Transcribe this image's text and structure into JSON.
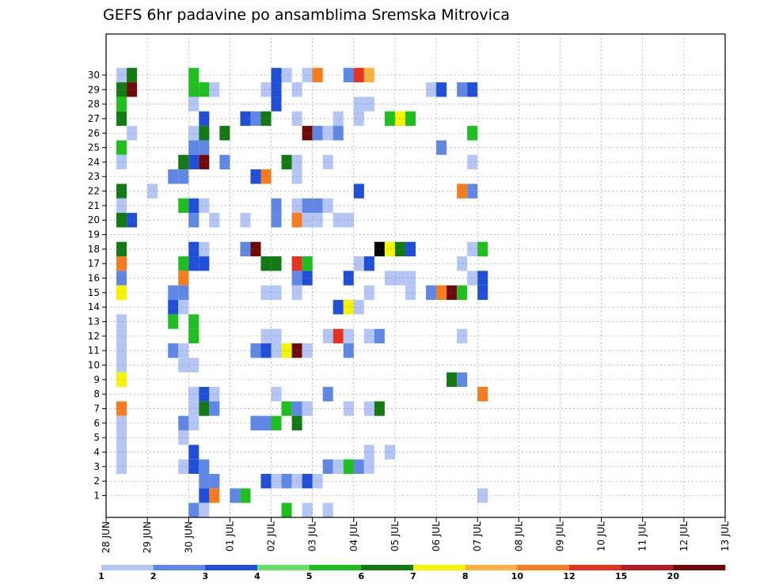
{
  "chart_data": {
    "type": "heatmap",
    "title": "GEFS 6hr padavine po ansamblima Sremska Mitrovica",
    "xlabel": "",
    "ylabel": "",
    "x_labels": [
      "28 JUN",
      "29 JUN",
      "30 JUN",
      "01 JUL",
      "02 JUL",
      "03 JUL",
      "04 JUL",
      "05 JUL",
      "06 JUL",
      "07 JUL",
      "08 JUL",
      "09 JUL",
      "10 JUL",
      "11 JUL",
      "12 JUL",
      "13 JUL"
    ],
    "y_labels": [
      "1",
      "2",
      "3",
      "4",
      "5",
      "6",
      "7",
      "8",
      "9",
      "10",
      "11",
      "12",
      "13",
      "14",
      "15",
      "16",
      "17",
      "18",
      "19",
      "20",
      "21",
      "22",
      "23",
      "24",
      "25",
      "26",
      "27",
      "28",
      "29",
      "30"
    ],
    "grid": true,
    "x_step_hours": 6,
    "levels": [
      1,
      2,
      3,
      4,
      5,
      6,
      7,
      8,
      10,
      12,
      15,
      20
    ],
    "colorbar_labels": [
      "1",
      "2",
      "3",
      "4",
      "5",
      "6",
      "7",
      "8",
      "10",
      "12",
      "15",
      "20"
    ],
    "colors": [
      "#b3c6f5",
      "#5f87e6",
      "#1f4fd9",
      "#66e066",
      "#1fbf1f",
      "#127a12",
      "#f5f500",
      "#fbb040",
      "#f57c1f",
      "#e6321f",
      "#b41e1e",
      "#6e0a0a"
    ],
    "cells": [
      [
        30,
        1,
        1
      ],
      [
        30,
        2,
        6
      ],
      [
        30,
        8,
        5
      ],
      [
        30,
        16,
        3
      ],
      [
        30,
        17,
        1
      ],
      [
        30,
        19,
        1
      ],
      [
        30,
        20,
        9
      ],
      [
        30,
        23,
        2
      ],
      [
        30,
        24,
        10
      ],
      [
        30,
        25,
        8
      ],
      [
        29,
        1,
        6
      ],
      [
        29,
        2,
        12
      ],
      [
        29,
        8,
        5
      ],
      [
        29,
        9,
        5
      ],
      [
        29,
        10,
        1
      ],
      [
        29,
        15,
        1
      ],
      [
        29,
        16,
        3
      ],
      [
        29,
        18,
        1
      ],
      [
        29,
        31,
        1
      ],
      [
        29,
        32,
        3
      ],
      [
        29,
        34,
        2
      ],
      [
        29,
        35,
        3
      ],
      [
        28,
        1,
        5
      ],
      [
        28,
        8,
        1
      ],
      [
        28,
        16,
        3
      ],
      [
        28,
        24,
        1
      ],
      [
        28,
        25,
        1
      ],
      [
        27,
        1,
        6
      ],
      [
        27,
        9,
        3
      ],
      [
        27,
        13,
        3
      ],
      [
        27,
        14,
        2
      ],
      [
        27,
        15,
        6
      ],
      [
        27,
        18,
        1
      ],
      [
        27,
        22,
        1
      ],
      [
        27,
        24,
        1
      ],
      [
        27,
        27,
        5
      ],
      [
        27,
        28,
        7
      ],
      [
        27,
        29,
        5
      ],
      [
        26,
        2,
        1
      ],
      [
        26,
        8,
        1
      ],
      [
        26,
        9,
        6
      ],
      [
        26,
        11,
        6
      ],
      [
        26,
        19,
        12
      ],
      [
        26,
        20,
        2
      ],
      [
        26,
        21,
        1
      ],
      [
        26,
        22,
        2
      ],
      [
        26,
        35,
        5
      ],
      [
        25,
        1,
        5
      ],
      [
        25,
        8,
        2
      ],
      [
        25,
        9,
        2
      ],
      [
        25,
        32,
        2
      ],
      [
        24,
        1,
        1
      ],
      [
        24,
        7,
        6
      ],
      [
        24,
        8,
        3
      ],
      [
        24,
        9,
        12
      ],
      [
        24,
        11,
        2
      ],
      [
        24,
        17,
        6
      ],
      [
        24,
        18,
        1
      ],
      [
        24,
        21,
        1
      ],
      [
        24,
        35,
        1
      ],
      [
        23,
        6,
        2
      ],
      [
        23,
        7,
        2
      ],
      [
        23,
        14,
        3
      ],
      [
        23,
        15,
        9
      ],
      [
        23,
        18,
        1
      ],
      [
        22,
        1,
        6
      ],
      [
        22,
        4,
        1
      ],
      [
        22,
        24,
        3
      ],
      [
        22,
        34,
        9
      ],
      [
        22,
        35,
        2
      ],
      [
        21,
        1,
        1
      ],
      [
        21,
        7,
        5
      ],
      [
        21,
        8,
        3
      ],
      [
        21,
        9,
        1
      ],
      [
        21,
        16,
        2
      ],
      [
        21,
        18,
        1
      ],
      [
        21,
        19,
        2
      ],
      [
        21,
        20,
        2
      ],
      [
        21,
        21,
        1
      ],
      [
        20,
        1,
        6
      ],
      [
        20,
        2,
        3
      ],
      [
        20,
        8,
        2
      ],
      [
        20,
        10,
        1
      ],
      [
        20,
        13,
        1
      ],
      [
        20,
        16,
        2
      ],
      [
        20,
        18,
        9
      ],
      [
        20,
        19,
        1
      ],
      [
        20,
        20,
        1
      ],
      [
        20,
        22,
        1
      ],
      [
        20,
        23,
        1
      ],
      [
        18,
        1,
        6
      ],
      [
        18,
        8,
        3
      ],
      [
        18,
        9,
        1
      ],
      [
        18,
        13,
        2
      ],
      [
        18,
        14,
        12
      ],
      [
        18,
        26,
        13
      ],
      [
        18,
        27,
        7
      ],
      [
        18,
        28,
        6
      ],
      [
        18,
        29,
        3
      ],
      [
        18,
        35,
        1
      ],
      [
        18,
        36,
        5
      ],
      [
        17,
        1,
        9
      ],
      [
        17,
        7,
        5
      ],
      [
        17,
        8,
        3
      ],
      [
        17,
        9,
        3
      ],
      [
        17,
        15,
        6
      ],
      [
        17,
        16,
        6
      ],
      [
        17,
        18,
        10
      ],
      [
        17,
        19,
        5
      ],
      [
        17,
        24,
        1
      ],
      [
        17,
        25,
        3
      ],
      [
        17,
        34,
        1
      ],
      [
        16,
        1,
        2
      ],
      [
        16,
        7,
        9
      ],
      [
        16,
        18,
        2
      ],
      [
        16,
        19,
        3
      ],
      [
        16,
        23,
        3
      ],
      [
        16,
        27,
        1
      ],
      [
        16,
        28,
        1
      ],
      [
        16,
        29,
        1
      ],
      [
        16,
        35,
        1
      ],
      [
        16,
        36,
        3
      ],
      [
        15,
        1,
        7
      ],
      [
        15,
        6,
        2
      ],
      [
        15,
        7,
        2
      ],
      [
        15,
        15,
        1
      ],
      [
        15,
        16,
        1
      ],
      [
        15,
        18,
        1
      ],
      [
        15,
        25,
        1
      ],
      [
        15,
        29,
        1
      ],
      [
        15,
        31,
        2
      ],
      [
        15,
        32,
        9
      ],
      [
        15,
        33,
        12
      ],
      [
        15,
        34,
        5
      ],
      [
        15,
        36,
        3
      ],
      [
        14,
        6,
        3
      ],
      [
        14,
        7,
        1
      ],
      [
        14,
        22,
        3
      ],
      [
        14,
        23,
        7
      ],
      [
        14,
        24,
        1
      ],
      [
        13,
        1,
        1
      ],
      [
        13,
        6,
        5
      ],
      [
        13,
        8,
        5
      ],
      [
        12,
        1,
        1
      ],
      [
        12,
        8,
        5
      ],
      [
        12,
        15,
        1
      ],
      [
        12,
        16,
        1
      ],
      [
        12,
        21,
        1
      ],
      [
        12,
        22,
        10
      ],
      [
        12,
        23,
        1
      ],
      [
        12,
        25,
        1
      ],
      [
        12,
        26,
        2
      ],
      [
        12,
        34,
        1
      ],
      [
        11,
        1,
        1
      ],
      [
        11,
        6,
        2
      ],
      [
        11,
        7,
        1
      ],
      [
        11,
        14,
        2
      ],
      [
        11,
        15,
        3
      ],
      [
        11,
        16,
        1
      ],
      [
        11,
        17,
        7
      ],
      [
        11,
        18,
        12
      ],
      [
        11,
        19,
        1
      ],
      [
        11,
        23,
        2
      ],
      [
        10,
        1,
        1
      ],
      [
        10,
        7,
        1
      ],
      [
        10,
        8,
        1
      ],
      [
        9,
        1,
        7
      ],
      [
        9,
        33,
        6
      ],
      [
        9,
        34,
        2
      ],
      [
        8,
        8,
        1
      ],
      [
        8,
        9,
        3
      ],
      [
        8,
        10,
        1
      ],
      [
        8,
        16,
        1
      ],
      [
        8,
        21,
        2
      ],
      [
        8,
        36,
        9
      ],
      [
        7,
        1,
        9
      ],
      [
        7,
        8,
        1
      ],
      [
        7,
        9,
        6
      ],
      [
        7,
        10,
        2
      ],
      [
        7,
        17,
        5
      ],
      [
        7,
        18,
        2
      ],
      [
        7,
        19,
        1
      ],
      [
        7,
        23,
        1
      ],
      [
        7,
        25,
        1
      ],
      [
        7,
        26,
        6
      ],
      [
        6,
        1,
        1
      ],
      [
        6,
        7,
        2
      ],
      [
        6,
        8,
        1
      ],
      [
        6,
        14,
        2
      ],
      [
        6,
        15,
        2
      ],
      [
        6,
        16,
        5
      ],
      [
        6,
        18,
        6
      ],
      [
        5,
        1,
        1
      ],
      [
        5,
        7,
        1
      ],
      [
        4,
        1,
        1
      ],
      [
        4,
        8,
        3
      ],
      [
        4,
        25,
        1
      ],
      [
        4,
        27,
        1
      ],
      [
        3,
        1,
        1
      ],
      [
        3,
        7,
        1
      ],
      [
        3,
        8,
        3
      ],
      [
        3,
        9,
        2
      ],
      [
        3,
        21,
        2
      ],
      [
        3,
        22,
        1
      ],
      [
        3,
        23,
        5
      ],
      [
        3,
        24,
        2
      ],
      [
        3,
        25,
        1
      ],
      [
        2,
        9,
        2
      ],
      [
        2,
        10,
        2
      ],
      [
        2,
        15,
        3
      ],
      [
        2,
        16,
        1
      ],
      [
        2,
        17,
        2
      ],
      [
        2,
        18,
        1
      ],
      [
        2,
        19,
        3
      ],
      [
        2,
        20,
        1
      ],
      [
        1,
        9,
        3
      ],
      [
        1,
        10,
        9
      ],
      [
        1,
        12,
        2
      ],
      [
        1,
        13,
        5
      ],
      [
        1,
        36,
        1
      ],
      [
        0,
        8,
        2
      ],
      [
        0,
        9,
        1
      ],
      [
        0,
        17,
        5
      ],
      [
        0,
        19,
        1
      ],
      [
        0,
        21,
        1
      ]
    ]
  }
}
